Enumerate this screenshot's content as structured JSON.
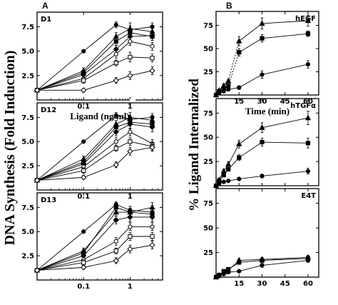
{
  "figure": {
    "panel_a_letter": "A",
    "panel_b_letter": "B"
  },
  "chart_data": [
    {
      "type": "line",
      "panel": "A",
      "subplot": "D1",
      "xscale": "log",
      "xlabel": "Ligand (ng/ml)",
      "ylabel": "DNA Synthesis (Fold Induction)",
      "xticks": [
        0.1,
        1
      ],
      "xtick_labels": [
        "0.1",
        "1"
      ],
      "yticks": [
        2.5,
        5.0,
        7.5
      ],
      "ytick_labels": [
        "2.5",
        "5.0",
        "7.5"
      ],
      "xlim": [
        0.01,
        5
      ],
      "ylim": [
        0,
        9
      ],
      "series": [
        {
          "marker": "filled-circle",
          "x": [
            0.01,
            0.1,
            0.5,
            1,
            3
          ],
          "y": [
            1.0,
            5.0,
            7.7,
            7.2,
            7.5
          ],
          "err": [
            0,
            0,
            0.3,
            0.4,
            0.4
          ]
        },
        {
          "marker": "filled-triangle",
          "x": [
            0.01,
            0.1,
            0.5,
            1,
            3
          ],
          "y": [
            1.0,
            3.0,
            6.5,
            7.3,
            7.0
          ],
          "err": [
            0,
            0.3,
            0.4,
            0.6,
            0.5
          ]
        },
        {
          "marker": "filled-square",
          "x": [
            0.01,
            0.1,
            0.5,
            1,
            3
          ],
          "y": [
            1.0,
            2.8,
            6.0,
            6.9,
            6.5
          ],
          "err": [
            0,
            0.3,
            0.4,
            0.4,
            0.4
          ]
        },
        {
          "marker": "filled-diamond",
          "x": [
            0.01,
            0.1,
            0.5,
            1,
            3
          ],
          "y": [
            1.0,
            2.6,
            5.2,
            6.5,
            6.6
          ],
          "err": [
            0,
            0.3,
            0.4,
            0.5,
            0.5
          ]
        },
        {
          "marker": "open-circle",
          "x": [
            0.01,
            0.1,
            0.5,
            1,
            3
          ],
          "y": [
            1.0,
            2.2,
            4.7,
            6.0,
            5.5
          ],
          "err": [
            0,
            0.3,
            0.4,
            0.4,
            0.4
          ]
        },
        {
          "marker": "open-square",
          "x": [
            0.01,
            0.1,
            0.5,
            1,
            3
          ],
          "y": [
            1.0,
            2.0,
            3.8,
            4.4,
            4.3
          ],
          "err": [
            0,
            0.3,
            0.3,
            0.5,
            0.4
          ]
        },
        {
          "marker": "open-diamond",
          "x": [
            0.01,
            0.1,
            0.5,
            1,
            3
          ],
          "y": [
            1.0,
            1.0,
            2.0,
            2.5,
            3.0
          ],
          "err": [
            0,
            0.2,
            0.3,
            0.4,
            0.4
          ]
        }
      ]
    },
    {
      "type": "line",
      "panel": "A",
      "subplot": "D12",
      "xscale": "log",
      "xticks": [
        0.1,
        1
      ],
      "xtick_labels": [
        "0.1",
        "1"
      ],
      "yticks": [
        2.5,
        5.0,
        7.5
      ],
      "ytick_labels": [
        "2.5",
        "5.0",
        "7.5"
      ],
      "xlim": [
        0.01,
        5
      ],
      "ylim": [
        0,
        9
      ],
      "series": [
        {
          "marker": "filled-circle",
          "x": [
            0.01,
            0.1,
            0.5,
            1,
            3
          ],
          "y": [
            1.0,
            5.0,
            7.7,
            7.3,
            7.5
          ],
          "err": [
            0,
            0,
            0.3,
            0.4,
            0.4
          ]
        },
        {
          "marker": "filled-triangle",
          "x": [
            0.01,
            0.1,
            0.5,
            1,
            3
          ],
          "y": [
            1.0,
            3.2,
            6.8,
            7.5,
            7.2
          ],
          "err": [
            0,
            0.3,
            0.4,
            0.5,
            0.5
          ]
        },
        {
          "marker": "filled-square",
          "x": [
            0.01,
            0.1,
            0.5,
            1,
            3
          ],
          "y": [
            1.0,
            2.9,
            6.5,
            7.0,
            6.8
          ],
          "err": [
            0,
            0.3,
            0.4,
            0.4,
            0.4
          ]
        },
        {
          "marker": "filled-diamond",
          "x": [
            0.01,
            0.1,
            0.5,
            1,
            3
          ],
          "y": [
            1.0,
            2.7,
            6.0,
            6.8,
            6.5
          ],
          "err": [
            0,
            0.3,
            0.4,
            0.5,
            0.5
          ]
        },
        {
          "marker": "open-circle",
          "x": [
            0.01,
            0.1,
            0.5,
            1,
            3
          ],
          "y": [
            1.0,
            2.4,
            5.0,
            6.0,
            4.8
          ],
          "err": [
            0,
            0.3,
            0.4,
            0.4,
            0.4
          ]
        },
        {
          "marker": "open-square",
          "x": [
            0.01,
            0.1,
            0.5,
            1,
            3
          ],
          "y": [
            1.0,
            2.0,
            4.3,
            5.0,
            4.5
          ],
          "err": [
            0,
            0.3,
            0.3,
            0.4,
            0.4
          ]
        },
        {
          "marker": "open-diamond",
          "x": [
            0.01,
            0.1,
            0.5,
            1,
            3
          ],
          "y": [
            1.0,
            1.3,
            2.6,
            4.0,
            4.4
          ],
          "err": [
            0,
            0.2,
            0.3,
            0.4,
            0.4
          ]
        }
      ]
    },
    {
      "type": "line",
      "panel": "A",
      "subplot": "D13",
      "xscale": "log",
      "xticks": [
        0.1,
        1
      ],
      "xtick_labels": [
        "0.1",
        "1"
      ],
      "yticks": [
        2.5,
        5.0,
        7.5
      ],
      "ytick_labels": [
        "2.5",
        "5.0",
        "7.5"
      ],
      "xlim": [
        0.01,
        5
      ],
      "ylim": [
        0,
        9
      ],
      "series": [
        {
          "marker": "filled-circle",
          "x": [
            0.01,
            0.1,
            0.5,
            1,
            3
          ],
          "y": [
            1.0,
            5.0,
            7.8,
            7.2,
            7.0
          ],
          "err": [
            0,
            0,
            0.3,
            0.4,
            0.4
          ]
        },
        {
          "marker": "filled-triangle",
          "x": [
            0.01,
            0.1,
            0.5,
            1,
            3
          ],
          "y": [
            1.0,
            3.0,
            7.0,
            7.0,
            7.5
          ],
          "err": [
            0,
            0.3,
            0.4,
            0.6,
            0.5
          ]
        },
        {
          "marker": "filled-square",
          "x": [
            0.01,
            0.1,
            0.5,
            1,
            3
          ],
          "y": [
            1.0,
            2.8,
            7.5,
            7.0,
            6.8
          ],
          "err": [
            0,
            0.3,
            0.3,
            0.4,
            0.4
          ]
        },
        {
          "marker": "filled-diamond",
          "x": [
            0.01,
            0.1,
            0.5,
            1,
            3
          ],
          "y": [
            1.0,
            2.5,
            6.2,
            6.5,
            6.5
          ],
          "err": [
            0,
            0.3,
            0.4,
            0.5,
            0.5
          ]
        },
        {
          "marker": "open-circle",
          "x": [
            0.01,
            0.1,
            0.5,
            1,
            3
          ],
          "y": [
            1.0,
            2.1,
            4.0,
            5.5,
            5.5
          ],
          "err": [
            0,
            0.3,
            0.4,
            0.4,
            0.4
          ]
        },
        {
          "marker": "open-square",
          "x": [
            0.01,
            0.1,
            0.5,
            1,
            3
          ],
          "y": [
            1.0,
            1.8,
            3.0,
            4.5,
            4.5
          ],
          "err": [
            0,
            0.3,
            0.3,
            0.4,
            0.4
          ]
        },
        {
          "marker": "open-diamond",
          "x": [
            0.01,
            0.1,
            0.5,
            1,
            3
          ],
          "y": [
            1.0,
            1.3,
            2.0,
            3.2,
            3.6
          ],
          "err": [
            0,
            0.2,
            0.3,
            0.4,
            0.4
          ]
        }
      ]
    },
    {
      "type": "line",
      "panel": "B",
      "subplot": "hEGF",
      "xlabel": "Time (min)",
      "ylabel": "% Ligand Internalized",
      "xticks": [
        15,
        30,
        45,
        60
      ],
      "xtick_labels": [
        "15",
        "30",
        "45",
        "60"
      ],
      "yticks": [
        25,
        50,
        75
      ],
      "ytick_labels": [
        "25",
        "50",
        "75"
      ],
      "xlim": [
        0,
        67
      ],
      "ylim": [
        0,
        90
      ],
      "series": [
        {
          "marker": "filled-triangle",
          "x": [
            0,
            2,
            5,
            8,
            15,
            30,
            60
          ],
          "y": [
            0,
            5,
            10,
            15,
            58,
            77,
            80
          ],
          "err": [
            0,
            1,
            2,
            2,
            5,
            6,
            6
          ],
          "dashed_segment": [
            3,
            4
          ]
        },
        {
          "marker": "filled-square",
          "x": [
            0,
            2,
            5,
            8,
            15,
            30,
            60
          ],
          "y": [
            0,
            4,
            7,
            10,
            46,
            61,
            66
          ],
          "err": [
            0,
            1,
            1,
            2,
            4,
            4,
            3
          ],
          "dashed_segment": [
            3,
            4
          ]
        },
        {
          "marker": "filled-circle",
          "x": [
            0,
            2,
            5,
            8,
            15,
            30,
            60
          ],
          "y": [
            0,
            2,
            4,
            6,
            8,
            22,
            33
          ],
          "err": [
            0,
            1,
            1,
            1,
            2,
            4,
            4
          ]
        }
      ]
    },
    {
      "type": "line",
      "panel": "B",
      "subplot": "hTGFα",
      "xticks": [
        15,
        30,
        45,
        60
      ],
      "yticks": [
        25,
        50,
        75
      ],
      "ytick_labels": [
        "25",
        "50",
        "75"
      ],
      "xlim": [
        0,
        67
      ],
      "ylim": [
        0,
        90
      ],
      "series": [
        {
          "marker": "filled-triangle",
          "x": [
            0,
            2,
            5,
            8,
            15,
            30,
            60
          ],
          "y": [
            0,
            6,
            15,
            22,
            43,
            60,
            70
          ],
          "err": [
            0,
            2,
            2,
            3,
            4,
            5,
            7
          ]
        },
        {
          "marker": "filled-square",
          "x": [
            0,
            2,
            5,
            8,
            15,
            30,
            60
          ],
          "y": [
            0,
            5,
            11,
            17,
            29,
            45,
            44
          ],
          "err": [
            0,
            1,
            2,
            2,
            3,
            4,
            5
          ]
        },
        {
          "marker": "filled-circle",
          "x": [
            0,
            2,
            5,
            8,
            15,
            30,
            60
          ],
          "y": [
            0,
            2,
            4,
            5,
            7,
            10,
            15
          ],
          "err": [
            0,
            1,
            1,
            1,
            1,
            2,
            3
          ]
        }
      ]
    },
    {
      "type": "line",
      "panel": "B",
      "subplot": "E4T",
      "xticks": [
        15,
        30,
        45,
        60
      ],
      "xtick_labels": [
        "15",
        "30",
        "45",
        "60"
      ],
      "yticks": [
        25,
        50,
        75
      ],
      "ytick_labels": [
        "25",
        "50",
        "75"
      ],
      "xlim": [
        0,
        67
      ],
      "ylim": [
        0,
        90
      ],
      "series": [
        {
          "marker": "filled-triangle",
          "x": [
            0,
            2,
            5,
            8,
            15,
            30,
            60
          ],
          "y": [
            0,
            2,
            5,
            7,
            17,
            18,
            20
          ],
          "err": [
            0,
            1,
            1,
            1,
            2,
            2,
            2
          ]
        },
        {
          "marker": "filled-square",
          "x": [
            0,
            2,
            5,
            8,
            15,
            30,
            60
          ],
          "y": [
            0,
            2,
            6,
            8,
            15,
            17,
            19
          ],
          "err": [
            0,
            1,
            1,
            1,
            2,
            2,
            2
          ]
        },
        {
          "marker": "filled-circle",
          "x": [
            0,
            2,
            5,
            8,
            15,
            30,
            60
          ],
          "y": [
            0,
            1,
            3,
            5,
            6,
            12,
            17
          ],
          "err": [
            0,
            1,
            1,
            1,
            1,
            2,
            2
          ]
        }
      ]
    }
  ]
}
